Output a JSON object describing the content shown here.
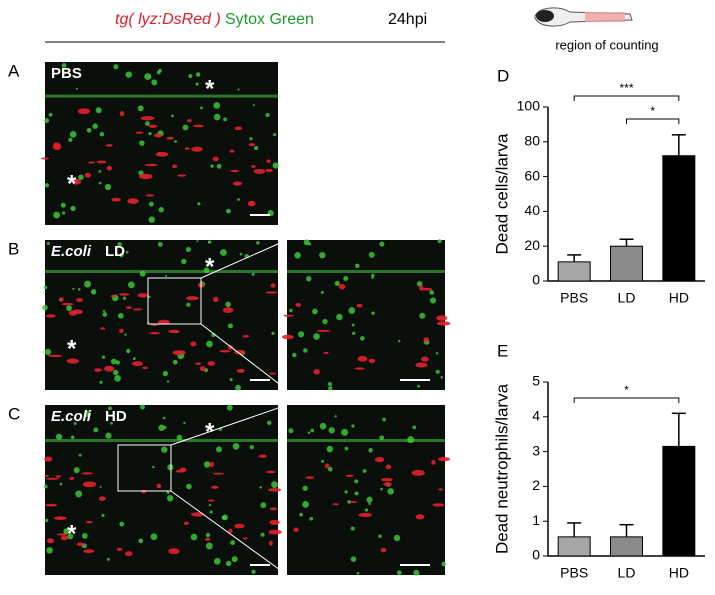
{
  "figure": {
    "header": {
      "reporter": "tg( lyz:DsRed )",
      "stain": "Sytox Green",
      "time": "24hpi",
      "region": "region of counting"
    },
    "panels": [
      {
        "letter": "A",
        "label": "PBS",
        "stars": [
          "*",
          "*"
        ]
      },
      {
        "letter": "B",
        "label": "E.coli",
        "dose": "LD",
        "stars": [
          "*",
          "*"
        ]
      },
      {
        "letter": "C",
        "label": "E.coli",
        "dose": "HD",
        "stars": [
          "*",
          "*"
        ]
      }
    ]
  },
  "chart_data": [
    {
      "type": "bar",
      "letter": "D",
      "ylabel": "Dead cells/larva",
      "categories": [
        "PBS",
        "LD",
        "HD"
      ],
      "values": [
        11,
        20,
        72
      ],
      "errors": [
        4,
        4,
        12
      ],
      "colors": [
        "#a6a6a6",
        "#8a8a8a",
        "#000000"
      ],
      "ylim": [
        0,
        100
      ],
      "yticks": [
        0,
        20,
        40,
        60,
        80,
        100
      ],
      "annotations": [
        "***",
        "*"
      ]
    },
    {
      "type": "bar",
      "letter": "E",
      "ylabel": "Dead neutrophils/larva",
      "categories": [
        "PBS",
        "LD",
        "HD"
      ],
      "values": [
        0.55,
        0.55,
        3.15
      ],
      "errors": [
        0.4,
        0.35,
        0.95
      ],
      "colors": [
        "#a6a6a6",
        "#8a8a8a",
        "#000000"
      ],
      "ylim": [
        0,
        5
      ],
      "yticks": [
        0,
        1,
        2,
        3,
        4,
        5
      ],
      "annotations": [
        "*"
      ]
    }
  ]
}
